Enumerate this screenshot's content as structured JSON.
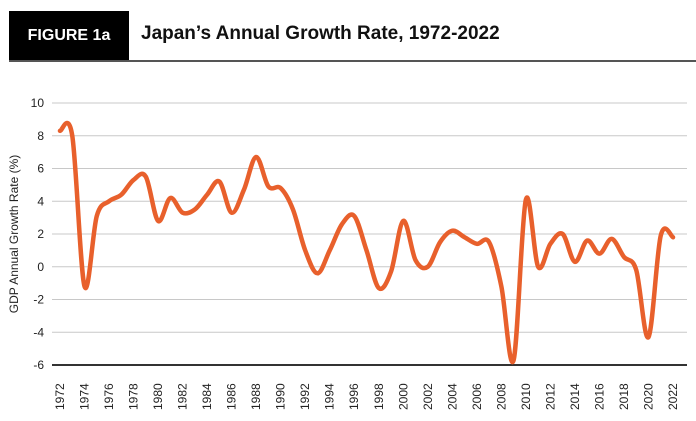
{
  "header": {
    "badge": "FIGURE 1a",
    "title": "Japan’s Annual Growth Rate, 1972-2022"
  },
  "chart_data": {
    "type": "line",
    "title": "Japan’s Annual Growth Rate, 1972-2022",
    "xlabel": "",
    "ylabel": "GDP Annual Growth Rate (%)",
    "ylim": [
      -6,
      10
    ],
    "yticks": [
      "-6",
      "-4",
      "-2",
      "0",
      "2",
      "4",
      "6",
      "8",
      "10"
    ],
    "xticks": [
      "1972",
      "1974",
      "1976",
      "1978",
      "1980",
      "1982",
      "1984",
      "1986",
      "1988",
      "1990",
      "1992",
      "1994",
      "1996",
      "1998",
      "2000",
      "2002",
      "2004",
      "2006",
      "2008",
      "2010",
      "2012",
      "2014",
      "2016",
      "2018",
      "2020",
      "2022"
    ],
    "grid": true,
    "line_color": "#e8602c",
    "x": [
      1972,
      1973,
      1974,
      1975,
      1976,
      1977,
      1978,
      1979,
      1980,
      1981,
      1982,
      1983,
      1984,
      1985,
      1986,
      1987,
      1988,
      1989,
      1990,
      1991,
      1992,
      1993,
      1994,
      1995,
      1996,
      1997,
      1998,
      1999,
      2000,
      2001,
      2002,
      2003,
      2004,
      2005,
      2006,
      2007,
      2008,
      2009,
      2010,
      2011,
      2012,
      2013,
      2014,
      2015,
      2016,
      2017,
      2018,
      2019,
      2020,
      2021,
      2022
    ],
    "values": [
      8.3,
      8.0,
      -1.2,
      3.1,
      4.0,
      4.4,
      5.3,
      5.5,
      2.8,
      4.2,
      3.3,
      3.5,
      4.4,
      5.2,
      3.3,
      4.7,
      6.7,
      4.9,
      4.8,
      3.5,
      1.0,
      -0.4,
      1.0,
      2.6,
      3.1,
      1.0,
      -1.3,
      -0.3,
      2.8,
      0.4,
      0.0,
      1.5,
      2.2,
      1.8,
      1.4,
      1.5,
      -1.2,
      -5.7,
      4.1,
      0.0,
      1.4,
      2.0,
      0.3,
      1.6,
      0.8,
      1.7,
      0.6,
      -0.2,
      -4.3,
      1.9,
      1.8
    ]
  }
}
